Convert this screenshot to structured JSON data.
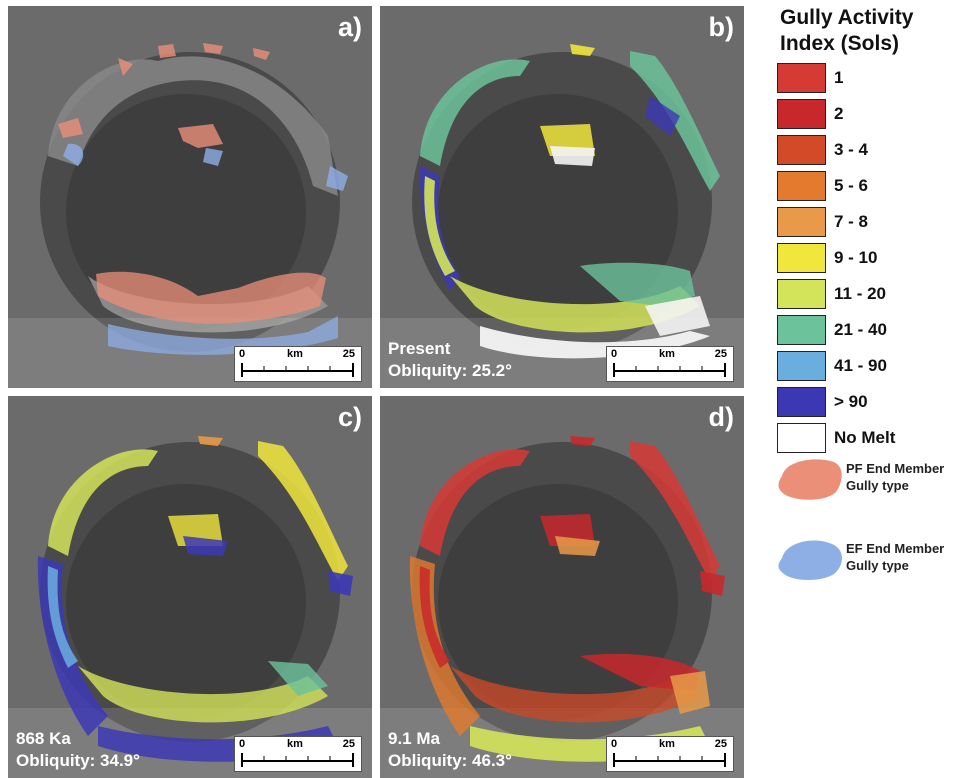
{
  "panels": [
    {
      "label": "a)",
      "caption": "",
      "obliquity": ""
    },
    {
      "label": "b)",
      "caption": "Present",
      "obliquity": "Obliquity: 25.2°"
    },
    {
      "label": "c)",
      "caption": "868 Ka",
      "obliquity": "Obliquity: 34.9°"
    },
    {
      "label": "d)",
      "caption": "9.1 Ma",
      "obliquity": "Obliquity: 46.3°"
    }
  ],
  "scale_bar": {
    "min": "0",
    "unit": "km",
    "max": "25"
  },
  "legend": {
    "title_line1": "Gully Activity",
    "title_line2": "Index (Sols)",
    "items": [
      {
        "label": "1",
        "color": "#d63a35"
      },
      {
        "label": "2",
        "color": "#c8282c"
      },
      {
        "label": "3 - 4",
        "color": "#d24a28"
      },
      {
        "label": "5 - 6",
        "color": "#e47a2e"
      },
      {
        "label": "7 - 8",
        "color": "#e89a48"
      },
      {
        "label": "9 - 10",
        "color": "#f0e63c"
      },
      {
        "label": "11 - 20",
        "color": "#d4e45a"
      },
      {
        "label": "21 - 40",
        "color": "#6cc29a"
      },
      {
        "label": "41 - 90",
        "color": "#6aaee0"
      },
      {
        "label": "> 90",
        "color": "#3c38b4"
      },
      {
        "label": "No Melt",
        "color": "#ffffff"
      }
    ],
    "gully_types": [
      {
        "line1": "PF End Member",
        "line2": "Gully type",
        "color": "#eb8f78"
      },
      {
        "line1": "EF End Member",
        "line2": "Gully type",
        "color": "#8eaee6"
      }
    ]
  }
}
